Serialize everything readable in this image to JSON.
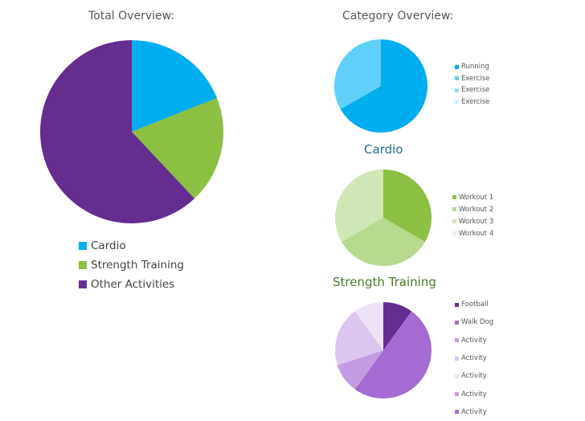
{
  "chart_data": [
    {
      "type": "pie",
      "title": "Total Overview:",
      "categories": [
        "Cardio",
        "Strength Training",
        "Other Activities"
      ],
      "values": [
        19,
        19,
        62
      ],
      "colors": [
        "#00ADEE",
        "#8CC043",
        "#652D90"
      ],
      "legend_position": "bottom"
    },
    {
      "type": "pie",
      "title": "Cardio",
      "section_header": "Category Overview:",
      "categories": [
        "Running",
        "Exercise",
        "Exercise",
        "Exercise"
      ],
      "values": [
        66.7,
        33.3,
        0,
        0
      ],
      "colors": [
        "#00ADEE",
        "#5ED0FA",
        "#93DEF8",
        "#C9EEFB"
      ],
      "legend_position": "right"
    },
    {
      "type": "pie",
      "title": "Strength Training",
      "categories": [
        "Workout 1",
        "Workout 2",
        "Workout 3",
        "Workout 4"
      ],
      "values": [
        33.3,
        33.3,
        33.3,
        0
      ],
      "colors": [
        "#8CC043",
        "#B7DA8E",
        "#CFE6B6",
        "#E6F2DA"
      ],
      "legend_position": "right"
    },
    {
      "type": "pie",
      "title": "",
      "categories": [
        "Football",
        "Walk Dog",
        "Activity",
        "Activity",
        "Activity",
        "Activity",
        "Activity"
      ],
      "values": [
        10,
        50,
        10,
        20,
        10,
        0,
        0
      ],
      "colors": [
        "#652D90",
        "#A66BD3",
        "#C39BE0",
        "#DCC5EF",
        "#EDE2F7",
        "#C39BE0",
        "#A66BD3"
      ],
      "legend_position": "right"
    }
  ],
  "headings": {
    "total": "Total Overview:",
    "category": "Category Overview:",
    "cardio": "Cardio",
    "strength": "Strength Training"
  },
  "title_colors": {
    "cardio": "#1F6A8A",
    "strength": "#4A7A2A"
  }
}
